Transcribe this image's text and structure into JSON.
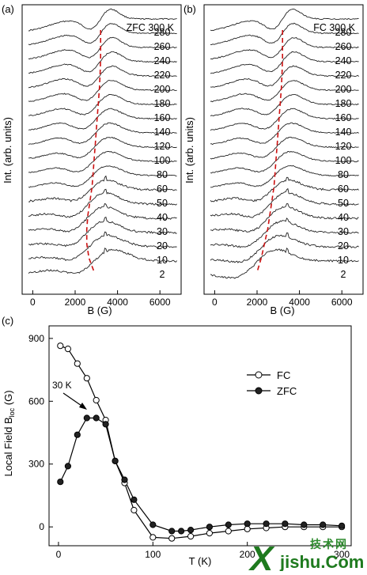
{
  "chart_data": [
    {
      "panel": "(a)",
      "type": "line",
      "condition_label": "ZFC 300 K",
      "xlabel": "B (G)",
      "ylabel": "Int. (arb. units)",
      "xlim": [
        -500,
        7000
      ],
      "xticks": [
        0,
        2000,
        4000,
        6000
      ],
      "xtick_labels": [
        "0",
        "2000",
        "4000",
        "6000"
      ],
      "curve_labels_top_to_bottom": [
        "280",
        "260",
        "240",
        "220",
        "200",
        "180",
        "160",
        "140",
        "120",
        "100",
        "80",
        "60",
        "50",
        "40",
        "30",
        "20",
        "10",
        "2"
      ],
      "resonance_field_guide": [
        3200,
        3200,
        3200,
        3180,
        3150,
        3100,
        3050,
        3000,
        2950,
        2900,
        2850,
        2800,
        2700,
        2600,
        2550,
        2550,
        2650,
        2900
      ]
    },
    {
      "panel": "(b)",
      "type": "line",
      "condition_label": "FC 300 K",
      "xlabel": "B (G)",
      "ylabel": "Int. (arb. units)",
      "xlim": [
        -500,
        7000
      ],
      "xticks": [
        0,
        2000,
        4000,
        6000
      ],
      "xtick_labels": [
        "0",
        "2000",
        "4000",
        "6000"
      ],
      "curve_labels_top_to_bottom": [
        "280",
        "260",
        "240",
        "220",
        "200",
        "180",
        "160",
        "140",
        "120",
        "100",
        "80",
        "60",
        "50",
        "40",
        "30",
        "20",
        "10",
        "2"
      ],
      "resonance_field_guide": [
        3200,
        3200,
        3200,
        3180,
        3150,
        3100,
        3050,
        3000,
        2950,
        2900,
        2850,
        2800,
        2700,
        2600,
        2500,
        2350,
        2200,
        2000
      ]
    },
    {
      "panel": "(c)",
      "type": "line",
      "xlabel": "T (K)",
      "ylabel": "Local Field B",
      "ylabel_sub": "loc",
      "ylabel_unit": " (G)",
      "xlim": [
        -10,
        310
      ],
      "ylim": [
        -90,
        960
      ],
      "xticks": [
        0,
        100,
        200,
        300
      ],
      "xtick_labels": [
        "0",
        "100",
        "200",
        "300"
      ],
      "yticks": [
        0,
        300,
        600,
        900
      ],
      "ytick_labels": [
        "0",
        "300",
        "600",
        "900"
      ],
      "legend_position": "right",
      "annotation": "30 K",
      "series": [
        {
          "name": "FC",
          "marker": "open-circle",
          "x": [
            2,
            10,
            20,
            30,
            40,
            50,
            60,
            70,
            80,
            100,
            120,
            140,
            160,
            180,
            200,
            220,
            240,
            260,
            280,
            300
          ],
          "y": [
            865,
            850,
            780,
            710,
            605,
            510,
            315,
            210,
            80,
            -50,
            -55,
            -45,
            -30,
            -20,
            -10,
            -5,
            0,
            0,
            0,
            0
          ]
        },
        {
          "name": "ZFC",
          "marker": "filled-circle",
          "x": [
            2,
            10,
            20,
            30,
            40,
            50,
            60,
            70,
            80,
            100,
            120,
            130,
            140,
            160,
            180,
            200,
            220,
            240,
            260,
            280,
            300
          ],
          "y": [
            215,
            290,
            440,
            520,
            520,
            490,
            315,
            225,
            130,
            10,
            -20,
            -20,
            -15,
            0,
            10,
            15,
            15,
            15,
            10,
            10,
            5
          ]
        }
      ]
    }
  ],
  "watermark": {
    "cn": "技术网",
    "x": "X",
    "domain": "jishu.Com"
  }
}
